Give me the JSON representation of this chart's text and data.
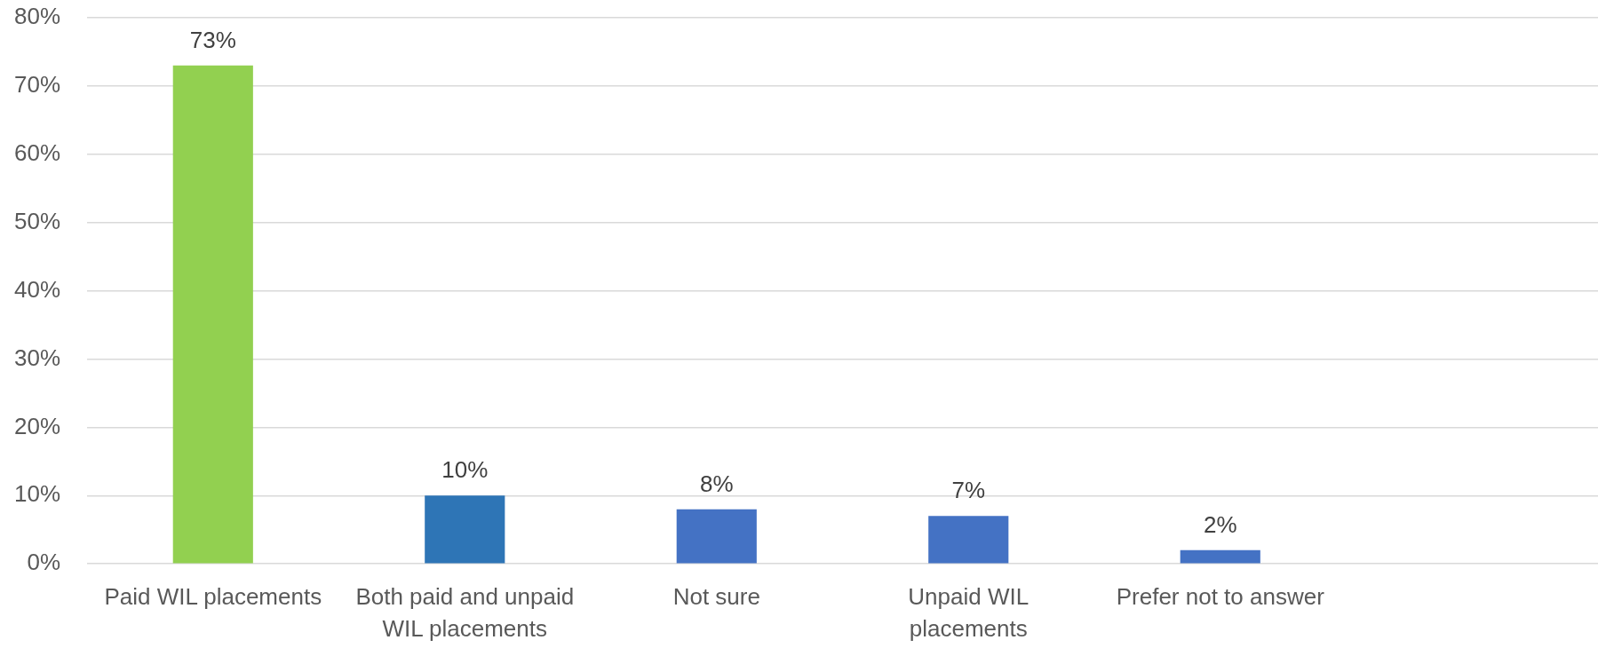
{
  "chart_data": {
    "type": "bar",
    "categories": [
      "Paid WIL placements",
      "Both paid and unpaid WIL placements",
      "Not sure",
      "Unpaid WIL placements",
      "Prefer not to answer",
      null
    ],
    "values": [
      73,
      10,
      8,
      7,
      2,
      null
    ],
    "colors": [
      "#92d050",
      "#2e75b6",
      "#4472c4",
      "#4472c4",
      "#4472c4",
      null
    ],
    "value_labels": [
      "73%",
      "10%",
      "8%",
      "7%",
      "2%",
      null
    ],
    "ylim": [
      0,
      80
    ],
    "yticks": [
      {
        "value": 0,
        "label": "0%"
      },
      {
        "value": 10,
        "label": "10%"
      },
      {
        "value": 20,
        "label": "20%"
      },
      {
        "value": 30,
        "label": "30%"
      },
      {
        "value": 40,
        "label": "40%"
      },
      {
        "value": 50,
        "label": "50%"
      },
      {
        "value": 60,
        "label": "60%"
      },
      {
        "value": 70,
        "label": "70%"
      },
      {
        "value": 80,
        "label": "80%"
      }
    ],
    "grid": "y"
  }
}
